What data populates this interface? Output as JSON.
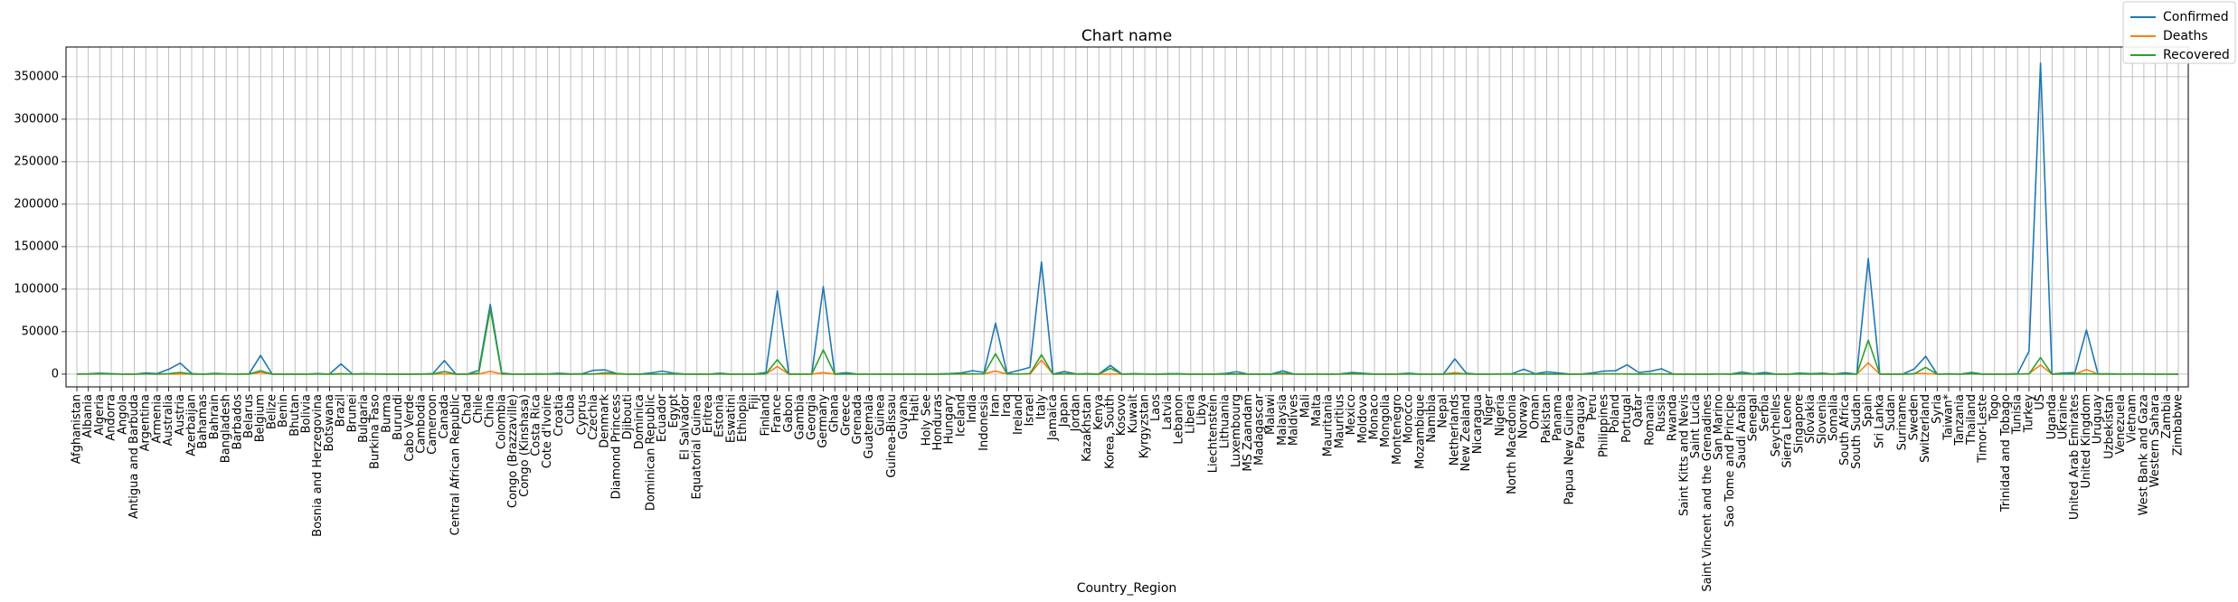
{
  "chart_data": {
    "type": "line",
    "title": "Chart name",
    "xlabel": "Country_Region",
    "ylabel": "",
    "ylim": [
      -15000,
      385000
    ],
    "yticks": [
      0,
      50000,
      100000,
      150000,
      200000,
      250000,
      300000,
      350000
    ],
    "grid": true,
    "legend_position": "top-right",
    "categories": [
      "Afghanistan",
      "Albania",
      "Algeria",
      "Andorra",
      "Angola",
      "Antigua and Barbuda",
      "Argentina",
      "Armenia",
      "Australia",
      "Austria",
      "Azerbaijan",
      "Bahamas",
      "Bahrain",
      "Bangladesh",
      "Barbados",
      "Belarus",
      "Belgium",
      "Belize",
      "Benin",
      "Bhutan",
      "Bolivia",
      "Bosnia and Herzegovina",
      "Botswana",
      "Brazil",
      "Brunei",
      "Bulgaria",
      "Burkina Faso",
      "Burma",
      "Burundi",
      "Cabo Verde",
      "Cambodia",
      "Cameroon",
      "Canada",
      "Central African Republic",
      "Chad",
      "Chile",
      "China",
      "Colombia",
      "Congo (Brazzaville)",
      "Congo (Kinshasa)",
      "Costa Rica",
      "Cote d'Ivoire",
      "Croatia",
      "Cuba",
      "Cyprus",
      "Czechia",
      "Denmark",
      "Diamond Princess",
      "Djibouti",
      "Dominica",
      "Dominican Republic",
      "Ecuador",
      "Egypt",
      "El Salvador",
      "Equatorial Guinea",
      "Eritrea",
      "Estonia",
      "Eswatini",
      "Ethiopia",
      "Fiji",
      "Finland",
      "France",
      "Gabon",
      "Gambia",
      "Georgia",
      "Germany",
      "Ghana",
      "Greece",
      "Grenada",
      "Guatemala",
      "Guinea",
      "Guinea-Bissau",
      "Guyana",
      "Haiti",
      "Holy See",
      "Honduras",
      "Hungary",
      "Iceland",
      "India",
      "Indonesia",
      "Iran",
      "Iraq",
      "Ireland",
      "Israel",
      "Italy",
      "Jamaica",
      "Japan",
      "Jordan",
      "Kazakhstan",
      "Kenya",
      "Korea, South",
      "Kosovo",
      "Kuwait",
      "Kyrgyzstan",
      "Laos",
      "Latvia",
      "Lebanon",
      "Liberia",
      "Libya",
      "Liechtenstein",
      "Lithuania",
      "Luxembourg",
      "MS Zaandam",
      "Madagascar",
      "Malawi",
      "Malaysia",
      "Maldives",
      "Mali",
      "Malta",
      "Mauritania",
      "Mauritius",
      "Mexico",
      "Moldova",
      "Monaco",
      "Mongolia",
      "Montenegro",
      "Morocco",
      "Mozambique",
      "Namibia",
      "Nepal",
      "Netherlands",
      "New Zealand",
      "Nicaragua",
      "Niger",
      "Nigeria",
      "North Macedonia",
      "Norway",
      "Oman",
      "Pakistan",
      "Panama",
      "Papua New Guinea",
      "Paraguay",
      "Peru",
      "Philippines",
      "Poland",
      "Portugal",
      "Qatar",
      "Romania",
      "Russia",
      "Rwanda",
      "Saint Kitts and Nevis",
      "Saint Lucia",
      "Saint Vincent and the Grenadines",
      "San Marino",
      "Sao Tome and Principe",
      "Saudi Arabia",
      "Senegal",
      "Serbia",
      "Seychelles",
      "Sierra Leone",
      "Singapore",
      "Slovakia",
      "Slovenia",
      "Somalia",
      "South Africa",
      "South Sudan",
      "Spain",
      "Sri Lanka",
      "Sudan",
      "Suriname",
      "Sweden",
      "Switzerland",
      "Syria",
      "Taiwan*",
      "Tanzania",
      "Thailand",
      "Timor-Leste",
      "Togo",
      "Trinidad and Tobago",
      "Tunisia",
      "Turkey",
      "US",
      "Uganda",
      "Ukraine",
      "United Arab Emirates",
      "United Kingdom",
      "Uruguay",
      "Uzbekistan",
      "Venezuela",
      "Vietnam",
      "West Bank and Gaza",
      "Western Sahara",
      "Zambia",
      "Zimbabwe"
    ],
    "series": [
      {
        "name": "Confirmed",
        "color": "#1f77b4",
        "values": [
          300,
          400,
          1000,
          500,
          20,
          20,
          1300,
          700,
          5700,
          13000,
          700,
          30,
          900,
          200,
          60,
          400,
          22000,
          10,
          20,
          5,
          100,
          600,
          6,
          12000,
          100,
          500,
          300,
          10,
          3,
          7,
          100,
          600,
          16000,
          8,
          10,
          4500,
          82000,
          1200,
          50,
          130,
          400,
          200,
          1100,
          300,
          400,
          4500,
          5000,
          700,
          30,
          15,
          1500,
          3500,
          1000,
          50,
          15,
          30,
          1100,
          10,
          40,
          10,
          2000,
          98000,
          20,
          4,
          150,
          103000,
          200,
          1700,
          10,
          50,
          90,
          20,
          20,
          30,
          7,
          200,
          600,
          1500,
          4000,
          2000,
          60000,
          900,
          4300,
          8000,
          132000,
          50,
          3000,
          300,
          500,
          100,
          10200,
          100,
          500,
          200,
          10,
          500,
          500,
          10,
          20,
          70,
          800,
          2800,
          10,
          80,
          5,
          3800,
          20,
          30,
          200,
          5,
          200,
          1900,
          1000,
          70,
          10,
          200,
          1000,
          10,
          20,
          10,
          18000,
          1000,
          6,
          100,
          230,
          500,
          5800,
          400,
          2600,
          1500,
          60,
          100,
          1400,
          3600,
          4000,
          11000,
          2000,
          3300,
          6300,
          100,
          10,
          15,
          10,
          260,
          4,
          2400,
          200,
          2000,
          10,
          5,
          1200,
          500,
          1100,
          10,
          1600,
          5,
          136000,
          150,
          10,
          10,
          6000,
          21000,
          20,
          400,
          30,
          2000,
          1,
          50,
          100,
          500,
          27000,
          366000,
          50,
          1300,
          1800,
          52000,
          400,
          400,
          150,
          240,
          250,
          4,
          40,
          10
        ]
      },
      {
        "name": "Deaths",
        "color": "#ff7f0e",
        "values": [
          7,
          20,
          80,
          20,
          2,
          0,
          50,
          10,
          40,
          200,
          8,
          1,
          5,
          20,
          0,
          5,
          2000,
          0,
          0,
          0,
          5,
          20,
          1,
          600,
          0,
          20,
          20,
          1,
          0,
          1,
          0,
          10,
          300,
          0,
          0,
          20,
          3300,
          40,
          5,
          10,
          3,
          2,
          10,
          10,
          10,
          70,
          200,
          10,
          0,
          0,
          70,
          170,
          60,
          2,
          0,
          0,
          20,
          0,
          0,
          0,
          30,
          9000,
          0,
          1,
          2,
          1800,
          5,
          70,
          0,
          1,
          0,
          0,
          4,
          2,
          0,
          10,
          30,
          5,
          100,
          200,
          3700,
          60,
          160,
          50,
          16500,
          3,
          100,
          5,
          5,
          3,
          190,
          1,
          1,
          1,
          0,
          1,
          20,
          1,
          1,
          1,
          10,
          40,
          2,
          0,
          0,
          60,
          0,
          5,
          3,
          1,
          7,
          80,
          20,
          1,
          0,
          2,
          70,
          0,
          0,
          0,
          1800,
          1,
          1,
          5,
          5,
          10,
          80,
          2,
          50,
          10,
          0,
          5,
          60,
          200,
          100,
          300,
          7,
          80,
          50,
          0,
          0,
          0,
          0,
          30,
          0,
          30,
          2,
          40,
          0,
          0,
          6,
          1,
          30,
          0,
          20,
          0,
          13300,
          5,
          2,
          1,
          600,
          700,
          2,
          5,
          1,
          30,
          0,
          0,
          7,
          20,
          600,
          10800,
          0,
          40,
          10,
          5400,
          5,
          2,
          5,
          0,
          1,
          0,
          1,
          1
        ]
      },
      {
        "name": "Recovered",
        "color": "#2ca02c",
        "values": [
          20,
          100,
          300,
          50,
          1,
          0,
          300,
          100,
          500,
          2000,
          50,
          0,
          400,
          30,
          10,
          50,
          4000,
          0,
          5,
          2,
          1,
          50,
          0,
          100,
          50,
          20,
          60,
          0,
          0,
          0,
          60,
          100,
          3000,
          0,
          0,
          1100,
          77000,
          50,
          5,
          10,
          5,
          20,
          100,
          10,
          30,
          80,
          1500,
          600,
          10,
          0,
          40,
          100,
          200,
          0,
          0,
          0,
          60,
          0,
          10,
          0,
          300,
          17000,
          1,
          0,
          40,
          28500,
          5,
          100,
          0,
          20,
          10,
          0,
          0,
          2,
          0,
          10,
          50,
          600,
          300,
          150,
          24000,
          300,
          20,
          700,
          22800,
          10,
          500,
          100,
          50,
          5,
          6800,
          10,
          100,
          20,
          0,
          10,
          50,
          0,
          5,
          10,
          5,
          60,
          0,
          10,
          0,
          1000,
          10,
          10,
          20,
          5,
          40,
          600,
          50,
          10,
          5,
          10,
          50,
          0,
          0,
          10,
          250,
          300,
          0,
          10,
          20,
          20,
          20,
          70,
          100,
          50,
          0,
          5,
          30,
          300,
          300,
          100,
          100,
          200,
          300,
          0,
          0,
          0,
          0,
          60,
          0,
          400,
          100,
          50,
          0,
          0,
          400,
          100,
          100,
          0,
          100,
          0,
          40000,
          10,
          2,
          0,
          200,
          8000,
          0,
          100,
          5,
          600,
          0,
          0,
          0,
          20,
          250,
          19500,
          1,
          20,
          200,
          300,
          20,
          30,
          50,
          120,
          60,
          0,
          20,
          0
        ]
      }
    ]
  }
}
